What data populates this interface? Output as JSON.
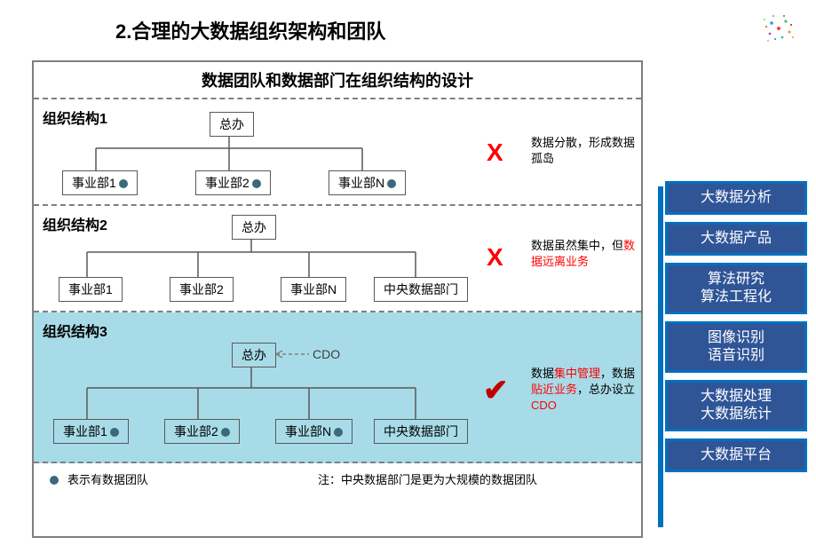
{
  "title": "2.合理的大数据组织架构和团队",
  "subtitle": "数据团队和数据部门在组织结构的设计",
  "colors": {
    "border": "#7f7f7f",
    "node_border": "#595959",
    "highlight_bg": "#a8dbe8",
    "dot": "#3a6a7a",
    "red": "#ff0000",
    "darkred": "#c00000",
    "side_border": "#0070c0",
    "side_fill": "#2f5597"
  },
  "structures": [
    {
      "label": "组织结构1",
      "root": "总办",
      "children": [
        {
          "label": "事业部1",
          "dot": true
        },
        {
          "label": "事业部2",
          "dot": true
        },
        {
          "label": "事业部N",
          "dot": true
        }
      ],
      "mark": "X",
      "caption_plain": "数据分散，形成数据孤岛",
      "caption_red": ""
    },
    {
      "label": "组织结构2",
      "root": "总办",
      "children": [
        {
          "label": "事业部1",
          "dot": false
        },
        {
          "label": "事业部2",
          "dot": false
        },
        {
          "label": "事业部N",
          "dot": false
        },
        {
          "label": "中央数据部门",
          "dot": false
        }
      ],
      "mark": "X",
      "caption_pre": "数据虽然集中，但",
      "caption_red": "数据远离业务"
    },
    {
      "label": "组织结构3",
      "root": "总办",
      "cdo": "CDO",
      "children": [
        {
          "label": "事业部1",
          "dot": true
        },
        {
          "label": "事业部2",
          "dot": true
        },
        {
          "label": "事业部N",
          "dot": true
        },
        {
          "label": "中央数据部门",
          "dot": false
        }
      ],
      "mark": "✓",
      "caption_parts": [
        {
          "t": "数据",
          "red": false
        },
        {
          "t": "集中管理",
          "red": true
        },
        {
          "t": "，数据",
          "red": false
        },
        {
          "t": "贴近业务",
          "red": true
        },
        {
          "t": "，总办设立",
          "red": false
        },
        {
          "t": "CDO",
          "red": true
        }
      ]
    }
  ],
  "legend": {
    "t1": "表示有数据团队",
    "t2": "注：中央数据部门是更为大规模的数据团队"
  },
  "sidebar": [
    "大数据分析",
    "大数据产品",
    "算法研究\n算法工程化",
    "图像识别\n语音识别",
    "大数据处理\n大数据统计",
    "大数据平台"
  ]
}
